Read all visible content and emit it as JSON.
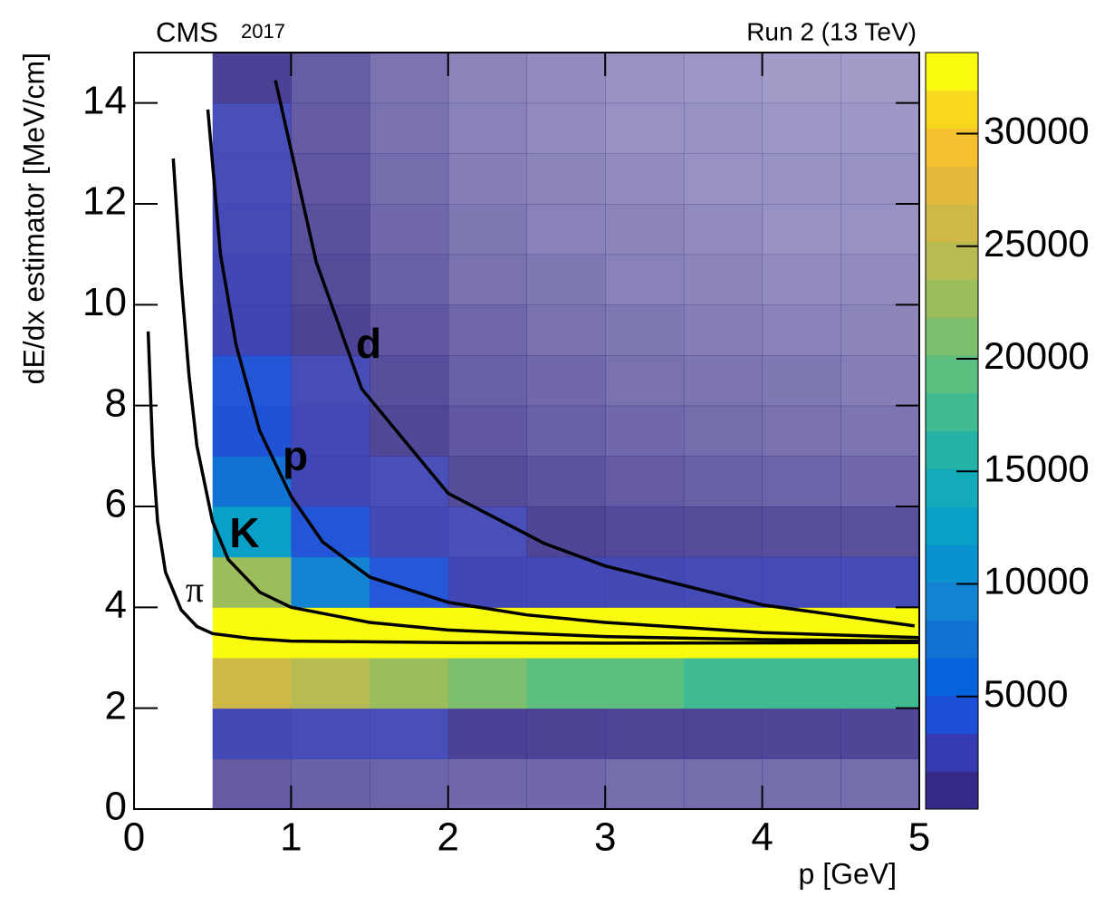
{
  "chart_data": {
    "type": "heatmap",
    "title": "CMS",
    "subtitle": "2017",
    "energy_label": "Run 2 (13 TeV)",
    "x_label": "p [GeV]",
    "y_label": "dE/dx estimator [MeV/cm]",
    "xlim": [
      0,
      5
    ],
    "ylim": [
      0,
      15
    ],
    "xticks": [
      0,
      1,
      2,
      3,
      4,
      5
    ],
    "yticks": [
      0,
      2,
      4,
      6,
      8,
      10,
      12,
      14
    ],
    "x_bins": [
      0,
      0.5,
      1,
      1.5,
      2,
      2.5,
      3,
      3.5,
      4,
      4.5,
      5
    ],
    "y_bins": [
      0,
      1,
      2,
      3,
      4,
      5,
      6,
      7,
      8,
      9,
      10,
      11,
      12,
      13,
      14,
      15
    ],
    "z": [
      [
        0,
        400,
        300,
        250,
        200,
        200,
        150,
        150,
        150,
        150
      ],
      [
        0,
        2500,
        2000,
        1800,
        1600,
        1500,
        1400,
        1400,
        1300,
        1300
      ],
      [
        0,
        26000,
        24000,
        22000,
        21000,
        20000,
        19000,
        18000,
        18000,
        17000
      ],
      [
        0,
        33600,
        33600,
        33600,
        33600,
        33600,
        33600,
        33600,
        33600,
        33600
      ],
      [
        0,
        22000,
        9000,
        3500,
        2800,
        2600,
        2500,
        2400,
        2400,
        2300
      ],
      [
        0,
        12000,
        4000,
        2500,
        1800,
        1400,
        1100,
        900,
        800,
        700
      ],
      [
        0,
        7000,
        3000,
        1800,
        900,
        600,
        400,
        300,
        250,
        200
      ],
      [
        0,
        5000,
        2600,
        1200,
        500,
        300,
        200,
        150,
        120,
        100
      ],
      [
        0,
        4000,
        2000,
        800,
        300,
        200,
        120,
        100,
        80,
        60
      ],
      [
        0,
        3200,
        1500,
        500,
        200,
        120,
        80,
        60,
        50,
        40
      ],
      [
        0,
        2800,
        1000,
        300,
        120,
        80,
        50,
        40,
        30,
        30
      ],
      [
        0,
        2400,
        700,
        200,
        80,
        50,
        40,
        30,
        20,
        20
      ],
      [
        0,
        2000,
        500,
        150,
        60,
        40,
        30,
        20,
        20,
        20
      ],
      [
        0,
        1800,
        400,
        120,
        50,
        30,
        20,
        20,
        15,
        15
      ],
      [
        0,
        1600,
        350,
        100,
        40,
        30,
        20,
        15,
        10,
        10
      ]
    ],
    "zlim": [
      0,
      33600
    ],
    "zticks": [
      5000,
      10000,
      15000,
      20000,
      25000,
      30000
    ],
    "palette": [
      "#352a87",
      "#343bb0",
      "#1b4fd6",
      "#0563dc",
      "#1172d4",
      "#1382d1",
      "#0a91d0",
      "#08a0c6",
      "#13aab9",
      "#26b3a6",
      "#3fba93",
      "#5dbf7f",
      "#7dbf6c",
      "#9cbd5c",
      "#b8bb51",
      "#d0b847",
      "#e4b93e",
      "#f5c130",
      "#f7d81f",
      "#f9fb0e"
    ],
    "series": [
      {
        "name": "π",
        "color": "#000000",
        "x": [
          0.09,
          0.12,
          0.15,
          0.2,
          0.3,
          0.4,
          0.5,
          0.75,
          1,
          2,
          3,
          5
        ],
        "values": [
          9.47,
          7.0,
          5.7,
          4.7,
          3.95,
          3.62,
          3.48,
          3.38,
          3.33,
          3.3,
          3.29,
          3.3
        ]
      },
      {
        "name": "K",
        "color": "#000000",
        "x": [
          0.25,
          0.3,
          0.35,
          0.4,
          0.5,
          0.6,
          0.8,
          1,
          1.5,
          2,
          3,
          4,
          5
        ],
        "values": [
          12.9,
          10.5,
          8.6,
          7.2,
          5.7,
          4.95,
          4.3,
          4.0,
          3.7,
          3.55,
          3.42,
          3.36,
          3.33
        ]
      },
      {
        "name": "p",
        "color": "#000000",
        "x": [
          0.47,
          0.55,
          0.65,
          0.8,
          1,
          1.2,
          1.5,
          2,
          2.5,
          3,
          4,
          5
        ],
        "values": [
          13.87,
          11,
          9.2,
          7.5,
          6.2,
          5.3,
          4.6,
          4.1,
          3.85,
          3.7,
          3.5,
          3.4
        ]
      },
      {
        "name": "d",
        "color": "#000000",
        "x": [
          0.9,
          1.16,
          1.45,
          2,
          2.61,
          3,
          4,
          4.97
        ],
        "values": [
          14.45,
          10.85,
          8.33,
          6.26,
          5.27,
          4.82,
          4.05,
          3.63
        ]
      }
    ]
  }
}
